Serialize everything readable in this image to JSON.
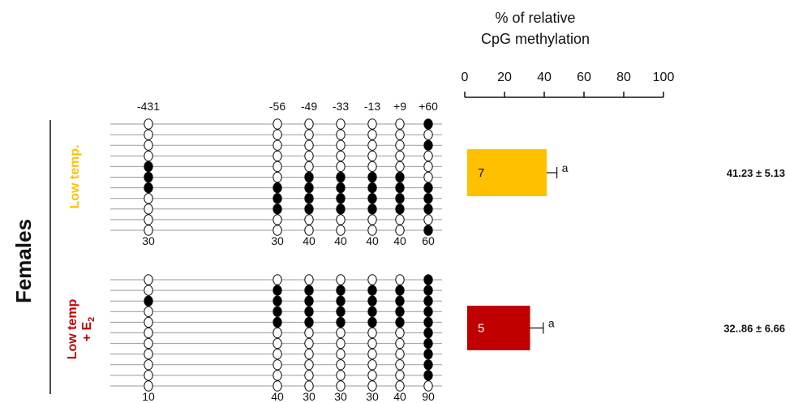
{
  "chart_data": {
    "type": "bar",
    "title": "% of relative CpG methylation",
    "title_lines": [
      "% of relative",
      "CpG methylation"
    ],
    "xlim": [
      0,
      100
    ],
    "xticks": [
      "0",
      "20",
      "40",
      "60",
      "80",
      "100"
    ],
    "xtick_values": [
      0,
      20,
      40,
      60,
      80,
      100
    ],
    "row_label": "Females",
    "cpg_positions": [
      "-431",
      "-56",
      "-49",
      "-33",
      "-13",
      "+9",
      "+60"
    ],
    "groups": [
      {
        "label": "Low temp.",
        "label_lines": [
          "Low temp."
        ],
        "color": "#ffc000",
        "value": 41.23,
        "error": 5.13,
        "n": "7",
        "significance": "a",
        "summary": "41.23 ± 5.13",
        "percentages": [
          "30",
          "30",
          "40",
          "40",
          "40",
          "40",
          "60"
        ],
        "methylation": [
          [
            0,
            0,
            0,
            0,
            0,
            0,
            1
          ],
          [
            0,
            0,
            0,
            0,
            0,
            0,
            0
          ],
          [
            0,
            0,
            0,
            0,
            0,
            0,
            1
          ],
          [
            0,
            0,
            0,
            0,
            0,
            0,
            0
          ],
          [
            1,
            0,
            0,
            0,
            0,
            0,
            0
          ],
          [
            1,
            0,
            1,
            1,
            1,
            1,
            0
          ],
          [
            1,
            1,
            1,
            1,
            1,
            1,
            1
          ],
          [
            0,
            1,
            1,
            1,
            1,
            1,
            1
          ],
          [
            0,
            1,
            1,
            1,
            1,
            1,
            1
          ],
          [
            0,
            0,
            0,
            0,
            0,
            0,
            0
          ],
          [
            0,
            0,
            0,
            0,
            0,
            0,
            1
          ]
        ]
      },
      {
        "label": "Low temp + E2",
        "label_lines": [
          "Low temp",
          "+ E",
          "2"
        ],
        "color": "#c00000",
        "value": 32.86,
        "error": 6.66,
        "n": "5",
        "significance": "a",
        "summary": "32..86 ± 6.66",
        "percentages": [
          "10",
          "40",
          "30",
          "30",
          "30",
          "40",
          "90"
        ],
        "methylation": [
          [
            0,
            0,
            0,
            0,
            0,
            0,
            1
          ],
          [
            0,
            1,
            1,
            1,
            1,
            1,
            1
          ],
          [
            1,
            1,
            1,
            1,
            1,
            1,
            1
          ],
          [
            0,
            1,
            1,
            1,
            1,
            1,
            1
          ],
          [
            0,
            1,
            1,
            1,
            1,
            1,
            1
          ],
          [
            0,
            0,
            0,
            0,
            0,
            0,
            1
          ],
          [
            0,
            0,
            0,
            0,
            0,
            0,
            1
          ],
          [
            0,
            0,
            0,
            0,
            0,
            0,
            1
          ],
          [
            0,
            0,
            0,
            0,
            0,
            0,
            1
          ],
          [
            0,
            0,
            0,
            0,
            0,
            0,
            1
          ],
          [
            0,
            0,
            0,
            0,
            0,
            0,
            0
          ]
        ]
      }
    ]
  }
}
